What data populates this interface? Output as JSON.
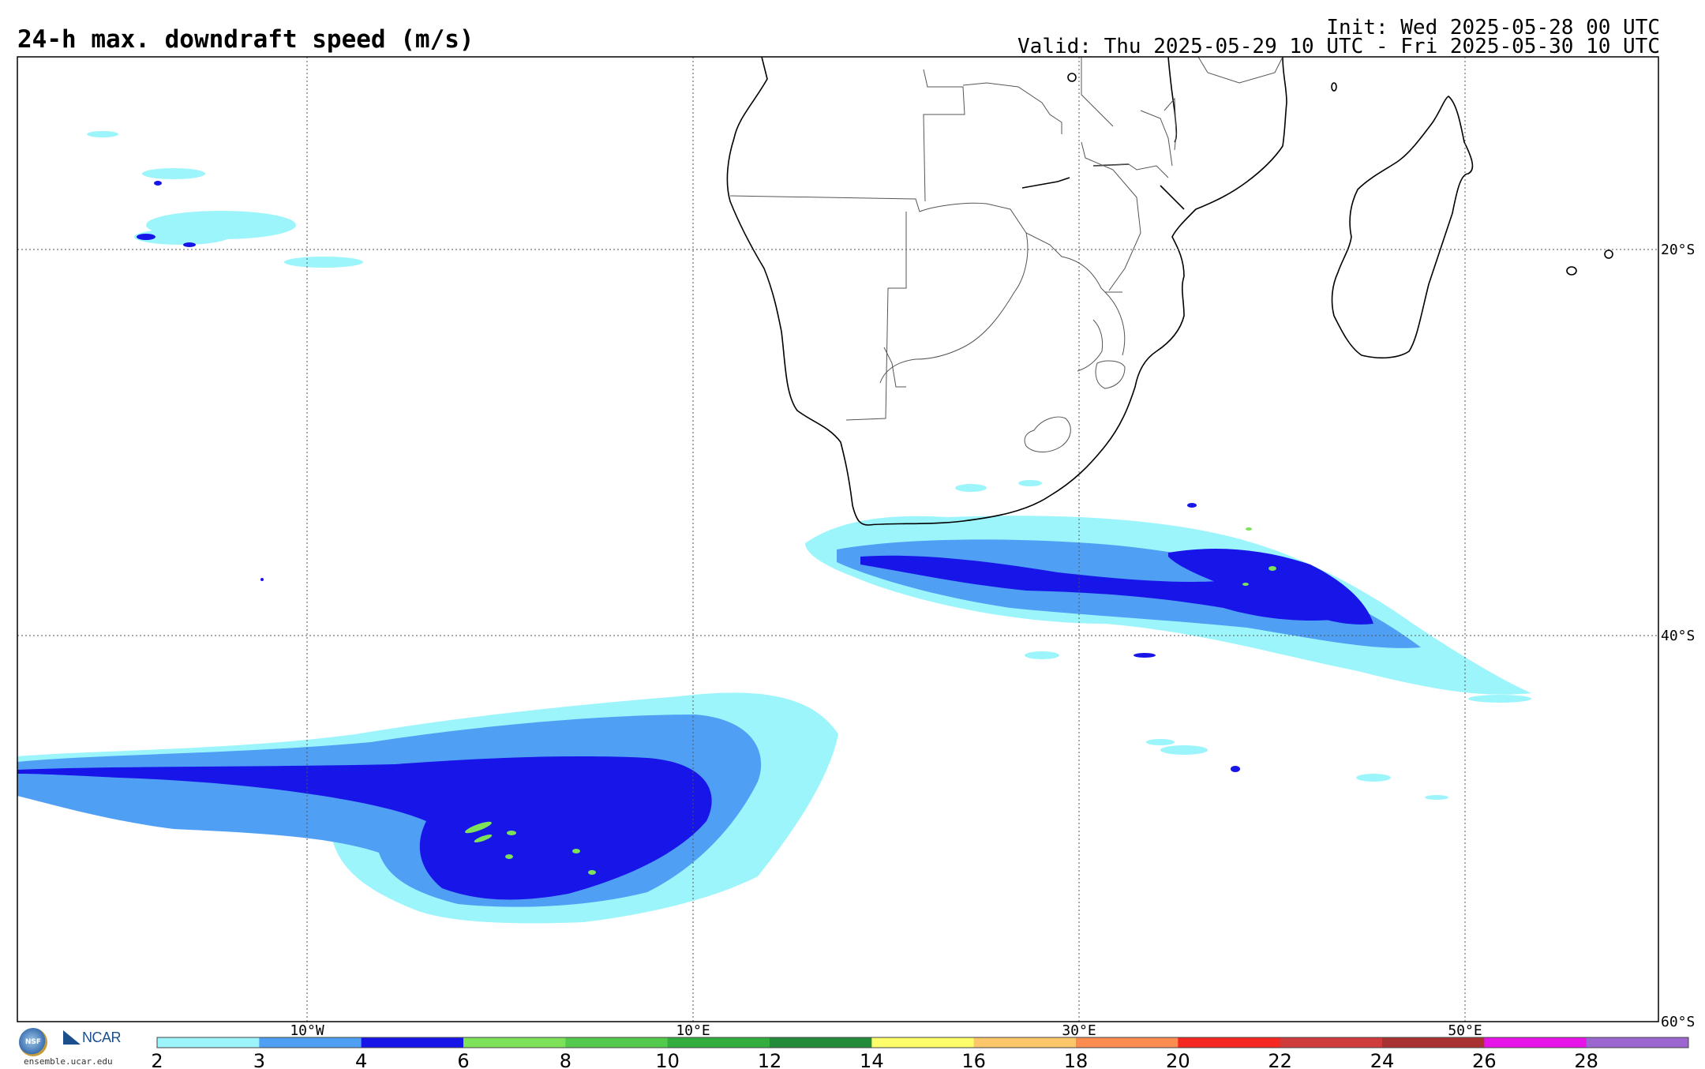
{
  "header": {
    "title": "24-h max. downdraft speed (m/s)",
    "init": "Init: Wed 2025-05-28 00 UTC",
    "valid": "Valid: Thu 2025-05-29 10 UTC - Fri 2025-05-30 10 UTC"
  },
  "map": {
    "projection": "lat-lon",
    "lon_range": [
      -25,
      60
    ],
    "lat_range": [
      -60,
      -10
    ],
    "longitude_labels": [
      "10°W",
      "10°E",
      "30°E",
      "50°E"
    ],
    "latitude_labels": [
      "20°S",
      "40°S",
      "60°S"
    ],
    "gridlines": "dotted",
    "coastline_color": "#000000",
    "border_color": "#555555"
  },
  "colorbar": {
    "ticks": [
      "2",
      "3",
      "4",
      "6",
      "8",
      "10",
      "12",
      "14",
      "16",
      "18",
      "20",
      "22",
      "24",
      "26",
      "28"
    ],
    "colors": [
      "#9cf5fb",
      "#4f9ff5",
      "#1815e8",
      "#7de15a",
      "#53ca4b",
      "#34ad3f",
      "#238c3a",
      "#fdfc6a",
      "#fbc76a",
      "#fa8d4f",
      "#f42820",
      "#cf3c3c",
      "#a83232",
      "#e614e8",
      "#9b66cf"
    ]
  },
  "footer": {
    "nsf": "NSF",
    "ncar": "NCAR",
    "url": "ensemble.ucar.edu"
  }
}
